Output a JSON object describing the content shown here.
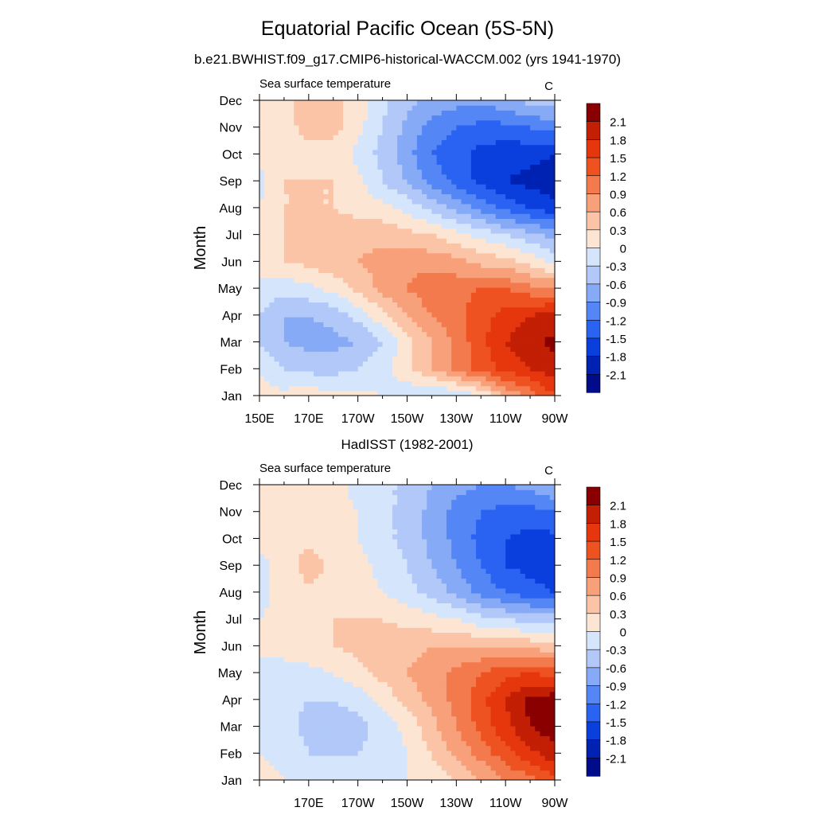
{
  "page": {
    "title": "Equatorial Pacific Ocean (5S-5N)",
    "subtitle": "b.e21.BWHIST.f09_g17.CMIP6-historical-WACCM.002 (yrs 1941-1970)"
  },
  "chart_data": [
    {
      "type": "heatmap",
      "panel_title": "",
      "left_string": "Sea surface temperature",
      "right_string": "C",
      "ylabel": "Month",
      "xlabel": "",
      "x_tick_labels": [
        "150E",
        "170E",
        "170W",
        "150W",
        "130W",
        "110W",
        "90W"
      ],
      "y_tick_labels": [
        "Jan",
        "Feb",
        "Mar",
        "Apr",
        "May",
        "Jun",
        "Jul",
        "Aug",
        "Sep",
        "Oct",
        "Nov",
        "Dec"
      ],
      "xlim": [
        150,
        270
      ],
      "ylim": [
        1,
        12
      ],
      "x_values": [
        150,
        160,
        170,
        180,
        190,
        200,
        210,
        220,
        230,
        240,
        250,
        260,
        270
      ],
      "grid": [
        [
          0.1,
          0.1,
          0.2,
          0.1,
          0.1,
          0.0,
          -0.2,
          -0.4,
          -0.3,
          0.0,
          0.6,
          1.0,
          1.5
        ],
        [
          0.0,
          -0.3,
          -0.4,
          -0.4,
          -0.3,
          -0.1,
          0.2,
          0.6,
          1.0,
          1.3,
          1.6,
          1.8,
          2.0
        ],
        [
          -0.3,
          -0.6,
          -0.7,
          -0.7,
          -0.6,
          -0.3,
          0.2,
          0.6,
          1.0,
          1.4,
          1.8,
          2.0,
          2.2
        ],
        [
          -0.3,
          -0.6,
          -0.6,
          -0.5,
          -0.2,
          0.2,
          0.6,
          0.9,
          1.1,
          1.4,
          1.6,
          1.8,
          1.9
        ],
        [
          -0.1,
          -0.2,
          -0.1,
          0.1,
          0.4,
          0.7,
          0.9,
          1.1,
          1.1,
          1.2,
          1.2,
          1.0,
          0.9
        ],
        [
          0.1,
          0.3,
          0.4,
          0.5,
          0.6,
          0.7,
          0.8,
          0.8,
          0.7,
          0.5,
          0.4,
          0.2,
          -0.1
        ],
        [
          0.2,
          0.3,
          0.4,
          0.5,
          0.5,
          0.5,
          0.4,
          0.3,
          0.1,
          -0.1,
          -0.3,
          -0.5,
          -0.7
        ],
        [
          0.0,
          0.3,
          0.3,
          0.3,
          0.2,
          0.1,
          -0.1,
          -0.4,
          -0.7,
          -1.0,
          -1.3,
          -1.5,
          -1.7
        ],
        [
          -0.1,
          0.3,
          0.3,
          0.3,
          0.1,
          -0.3,
          -0.6,
          -1.0,
          -1.3,
          -1.6,
          -1.8,
          -1.9,
          -2.0
        ],
        [
          0.1,
          0.2,
          0.2,
          0.2,
          -0.1,
          -0.4,
          -0.8,
          -1.2,
          -1.4,
          -1.6,
          -1.7,
          -1.7,
          -1.8
        ],
        [
          0.1,
          0.2,
          0.4,
          0.4,
          0.1,
          -0.3,
          -0.7,
          -1.0,
          -1.2,
          -1.3,
          -1.3,
          -1.2,
          -1.1
        ],
        [
          0.2,
          0.2,
          0.5,
          0.4,
          0.2,
          -0.2,
          -0.5,
          -0.7,
          -0.8,
          -0.8,
          -0.7,
          -0.5,
          -0.4
        ]
      ]
    },
    {
      "type": "heatmap",
      "panel_title": "HadISST (1982-2001)",
      "left_string": "Sea surface temperature",
      "right_string": "C",
      "ylabel": "Month",
      "xlabel": "",
      "x_tick_labels": [
        "",
        "170E",
        "170W",
        "150W",
        "130W",
        "110W",
        "90W"
      ],
      "y_tick_labels": [
        "Jan",
        "Feb",
        "Mar",
        "Apr",
        "May",
        "Jun",
        "Jul",
        "Aug",
        "Sep",
        "Oct",
        "Nov",
        "Dec"
      ],
      "xlim": [
        150,
        270
      ],
      "ylim": [
        1,
        12
      ],
      "x_values": [
        150,
        160,
        170,
        180,
        190,
        200,
        210,
        220,
        230,
        240,
        250,
        260,
        270
      ],
      "grid": [
        [
          0.1,
          0.0,
          0.0,
          -0.1,
          -0.1,
          -0.1,
          0.0,
          0.1,
          0.3,
          0.6,
          0.9,
          1.1,
          1.4
        ],
        [
          0.0,
          -0.1,
          -0.3,
          -0.3,
          -0.3,
          -0.2,
          0.0,
          0.3,
          0.7,
          1.0,
          1.4,
          1.7,
          2.0
        ],
        [
          -0.1,
          -0.2,
          -0.4,
          -0.4,
          -0.4,
          -0.2,
          0.1,
          0.5,
          0.9,
          1.3,
          1.7,
          2.1,
          2.3
        ],
        [
          -0.1,
          -0.2,
          -0.3,
          -0.3,
          -0.2,
          0.1,
          0.4,
          0.7,
          1.0,
          1.4,
          1.8,
          2.2,
          2.3
        ],
        [
          0.0,
          -0.1,
          -0.1,
          0.0,
          0.2,
          0.4,
          0.6,
          0.8,
          1.0,
          1.2,
          1.4,
          1.5,
          1.4
        ],
        [
          0.0,
          0.1,
          0.2,
          0.3,
          0.4,
          0.5,
          0.5,
          0.6,
          0.6,
          0.6,
          0.6,
          0.5,
          0.4
        ],
        [
          0.0,
          0.1,
          0.2,
          0.3,
          0.3,
          0.3,
          0.2,
          0.1,
          0.0,
          -0.2,
          -0.3,
          -0.4,
          -0.4
        ],
        [
          -0.1,
          0.1,
          0.2,
          0.2,
          0.1,
          0.0,
          -0.2,
          -0.4,
          -0.7,
          -1.0,
          -1.2,
          -1.4,
          -1.5
        ],
        [
          -0.1,
          0.1,
          0.5,
          0.2,
          0.1,
          -0.1,
          -0.3,
          -0.6,
          -0.9,
          -1.2,
          -1.5,
          -1.6,
          -1.7
        ],
        [
          0.1,
          0.2,
          0.2,
          0.1,
          0.0,
          -0.2,
          -0.4,
          -0.7,
          -1.0,
          -1.3,
          -1.5,
          -1.6,
          -1.6
        ],
        [
          0.2,
          0.2,
          0.2,
          0.1,
          0.0,
          -0.2,
          -0.4,
          -0.7,
          -1.0,
          -1.2,
          -1.3,
          -1.3,
          -1.2
        ],
        [
          0.2,
          0.2,
          0.2,
          0.1,
          -0.1,
          -0.2,
          -0.4,
          -0.6,
          -0.8,
          -0.9,
          -0.9,
          -0.8,
          -0.6
        ]
      ]
    }
  ],
  "colorbar": {
    "labels": [
      "2.1",
      "1.8",
      "1.5",
      "1.2",
      "0.9",
      "0.6",
      "0.3",
      "0",
      "-0.3",
      "-0.6",
      "-0.9",
      "-1.2",
      "-1.5",
      "-1.8",
      "-2.1"
    ],
    "levels": [
      -2.1,
      -1.8,
      -1.5,
      -1.2,
      -0.9,
      -0.6,
      -0.3,
      0,
      0.3,
      0.6,
      0.9,
      1.2,
      1.5,
      1.8,
      2.1
    ],
    "colors": [
      "#000c8a",
      "#0022b3",
      "#0a3fdd",
      "#2a63f2",
      "#5487f5",
      "#86aaf6",
      "#b1c8f9",
      "#d5e6fc",
      "#fde5d3",
      "#fbc4a7",
      "#f7a07a",
      "#f37a4d",
      "#ee5221",
      "#e5360d",
      "#c21f05",
      "#8a0000"
    ]
  }
}
